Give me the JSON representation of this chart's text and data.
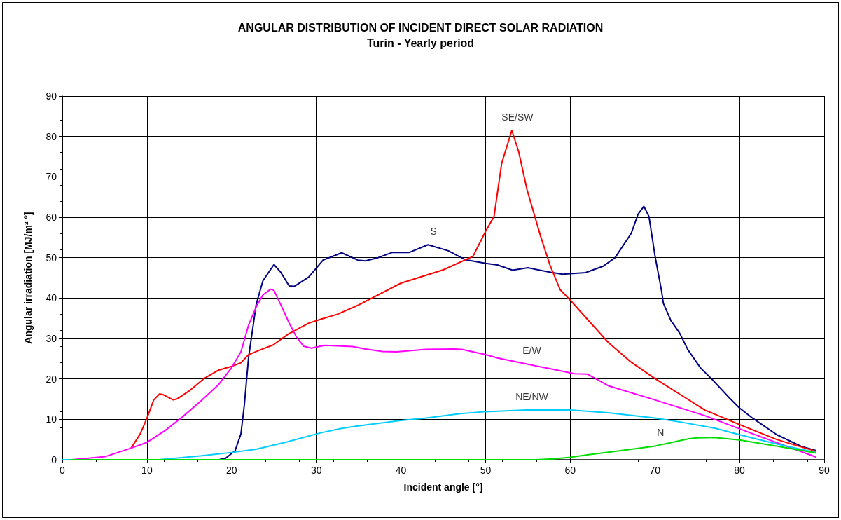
{
  "chart_data": {
    "type": "line",
    "title": "ANGULAR DISTRIBUTION OF INCIDENT DIRECT SOLAR RADIATION",
    "subtitle": "Turin - Yearly period",
    "xlabel": "Incident angle [°]",
    "ylabel": "Angular irradiation [MJ/m² °]",
    "xlim": [
      0,
      90
    ],
    "xticks": [
      0,
      10,
      20,
      30,
      40,
      50,
      60,
      70,
      80,
      90
    ],
    "ylim": [
      0,
      90
    ],
    "yticks": [
      0,
      10,
      20,
      30,
      40,
      50,
      60,
      70,
      80,
      90
    ],
    "grid": true,
    "marker": "none",
    "line_style": "solid",
    "series": [
      {
        "color": "#000080",
        "x": [
          2,
          17.6,
          18.5,
          19.3,
          20.4,
          21.1,
          21.5,
          22,
          22.9,
          23.7,
          25,
          25.8,
          26.8,
          27.4,
          29.1,
          30.8,
          33,
          34.9,
          35.8,
          37.3,
          39,
          41,
          43.2,
          45.6,
          47.6,
          50,
          51.4,
          53.2,
          55,
          57.7,
          59.1,
          61.8,
          63.9,
          65.3,
          67.2,
          68,
          68.7,
          69.3,
          70,
          70.8,
          71,
          71.9,
          72.9,
          73.9,
          75.4,
          76.8,
          78.8,
          80,
          81.6,
          84.4,
          87.3,
          89
        ],
        "values": [
          0,
          0,
          0,
          0.4,
          2.2,
          6.4,
          13.5,
          25.3,
          38.4,
          44.3,
          48.3,
          46.4,
          43,
          42.9,
          45.2,
          49.4,
          51.2,
          49.4,
          49.2,
          50,
          51.3,
          51.3,
          53.2,
          51.7,
          49.5,
          48.6,
          48.2,
          46.9,
          47.5,
          46.4,
          45.9,
          46.3,
          47.9,
          50,
          56,
          60.7,
          62.7,
          60.2,
          50.6,
          41.6,
          38.7,
          34.4,
          31.4,
          27.2,
          22.7,
          19.8,
          15.3,
          12.8,
          10.2,
          6.2,
          3.3,
          2.3
        ]
      },
      {
        "color": "#ff0000",
        "x": [
          8.1,
          9.2,
          10,
          10.8,
          11.5,
          11.9,
          13.1,
          13.6,
          15.1,
          16.8,
          18.5,
          20,
          21.1,
          22,
          23.4,
          24.9,
          26.7,
          29.1,
          30.6,
          32.5,
          35,
          40,
          45,
          48.5,
          50,
          51,
          51.9,
          53.1,
          53.9,
          54.9,
          56.5,
          57.6,
          58.8,
          60,
          61.7,
          64.5,
          67.1,
          70,
          73.1,
          75.9,
          80,
          84.4,
          89
        ],
        "values": [
          2.8,
          6.4,
          10.3,
          14.8,
          16.3,
          16.1,
          14.8,
          15.1,
          17.2,
          20.2,
          22.2,
          23.1,
          24,
          26,
          27.2,
          28.4,
          31.1,
          33.8,
          34.8,
          36,
          38.3,
          43.7,
          47,
          50.3,
          56.5,
          60.2,
          73.3,
          81.5,
          76.3,
          66.8,
          55.3,
          48.2,
          42.1,
          39.5,
          35.5,
          29,
          24.3,
          20.1,
          16,
          12.3,
          8.7,
          5,
          2.1
        ]
      },
      {
        "color": "#ff00ff",
        "x": [
          1.1,
          5.1,
          8,
          10,
          12.2,
          14.2,
          16.5,
          18.5,
          20,
          21.1,
          22,
          22.9,
          23.7,
          24.6,
          25,
          25.8,
          26.8,
          27.7,
          28.5,
          29.4,
          31,
          34.3,
          35.8,
          37.8,
          39.5,
          42.9,
          46.3,
          47.2,
          50,
          51.4,
          54.8,
          57.7,
          60.5,
          62,
          64.5,
          70,
          75.9,
          81.6,
          89
        ],
        "values": [
          0,
          0.8,
          2.8,
          4.3,
          7.3,
          10.6,
          14.8,
          18.7,
          22.8,
          26.7,
          33.3,
          37.8,
          40.8,
          42.2,
          41.9,
          38.4,
          33.8,
          30.2,
          28.1,
          27.6,
          28.3,
          28,
          27.4,
          26.8,
          26.7,
          27.3,
          27.4,
          27.3,
          26,
          25.2,
          23.7,
          22.5,
          21.3,
          21.2,
          18.3,
          14.8,
          10.9,
          6.4,
          0.7
        ]
      },
      {
        "color": "#00ccff",
        "x": [
          0,
          11.4,
          16.5,
          20,
          22.9,
          26.3,
          30.6,
          33.1,
          35.1,
          40,
          43,
          47,
          50,
          54.8,
          57.7,
          60,
          64.5,
          70,
          73.1,
          77.1,
          80,
          84.4,
          89
        ],
        "values": [
          0,
          0,
          1,
          1.8,
          2.6,
          4.3,
          6.7,
          7.8,
          8.4,
          9.7,
          10.3,
          11.4,
          11.9,
          12.3,
          12.3,
          12.3,
          11.6,
          10.3,
          9.3,
          7.8,
          6.2,
          3.9,
          1.8
        ]
      },
      {
        "color": "#00dd00",
        "x": [
          1,
          56,
          58,
          60,
          62,
          65,
          68,
          70,
          72,
          74,
          75,
          77,
          80,
          84,
          89
        ],
        "values": [
          0,
          0,
          0.2,
          0.6,
          1.2,
          2,
          2.8,
          3.4,
          4.3,
          5.2,
          5.4,
          5.5,
          4.9,
          3.5,
          1.7
        ]
      }
    ],
    "annotations": [
      {
        "text": "S",
        "x": 43.2,
        "y": 53.2
      },
      {
        "text": "SE/SW",
        "x": 53.1,
        "y": 81.5
      },
      {
        "text": "E/W",
        "x": 54.8,
        "y": 23.7
      },
      {
        "text": "NE/NW",
        "x": 54.8,
        "y": 12.3
      },
      {
        "text": "N",
        "x": 70,
        "y": 3.4
      }
    ]
  }
}
